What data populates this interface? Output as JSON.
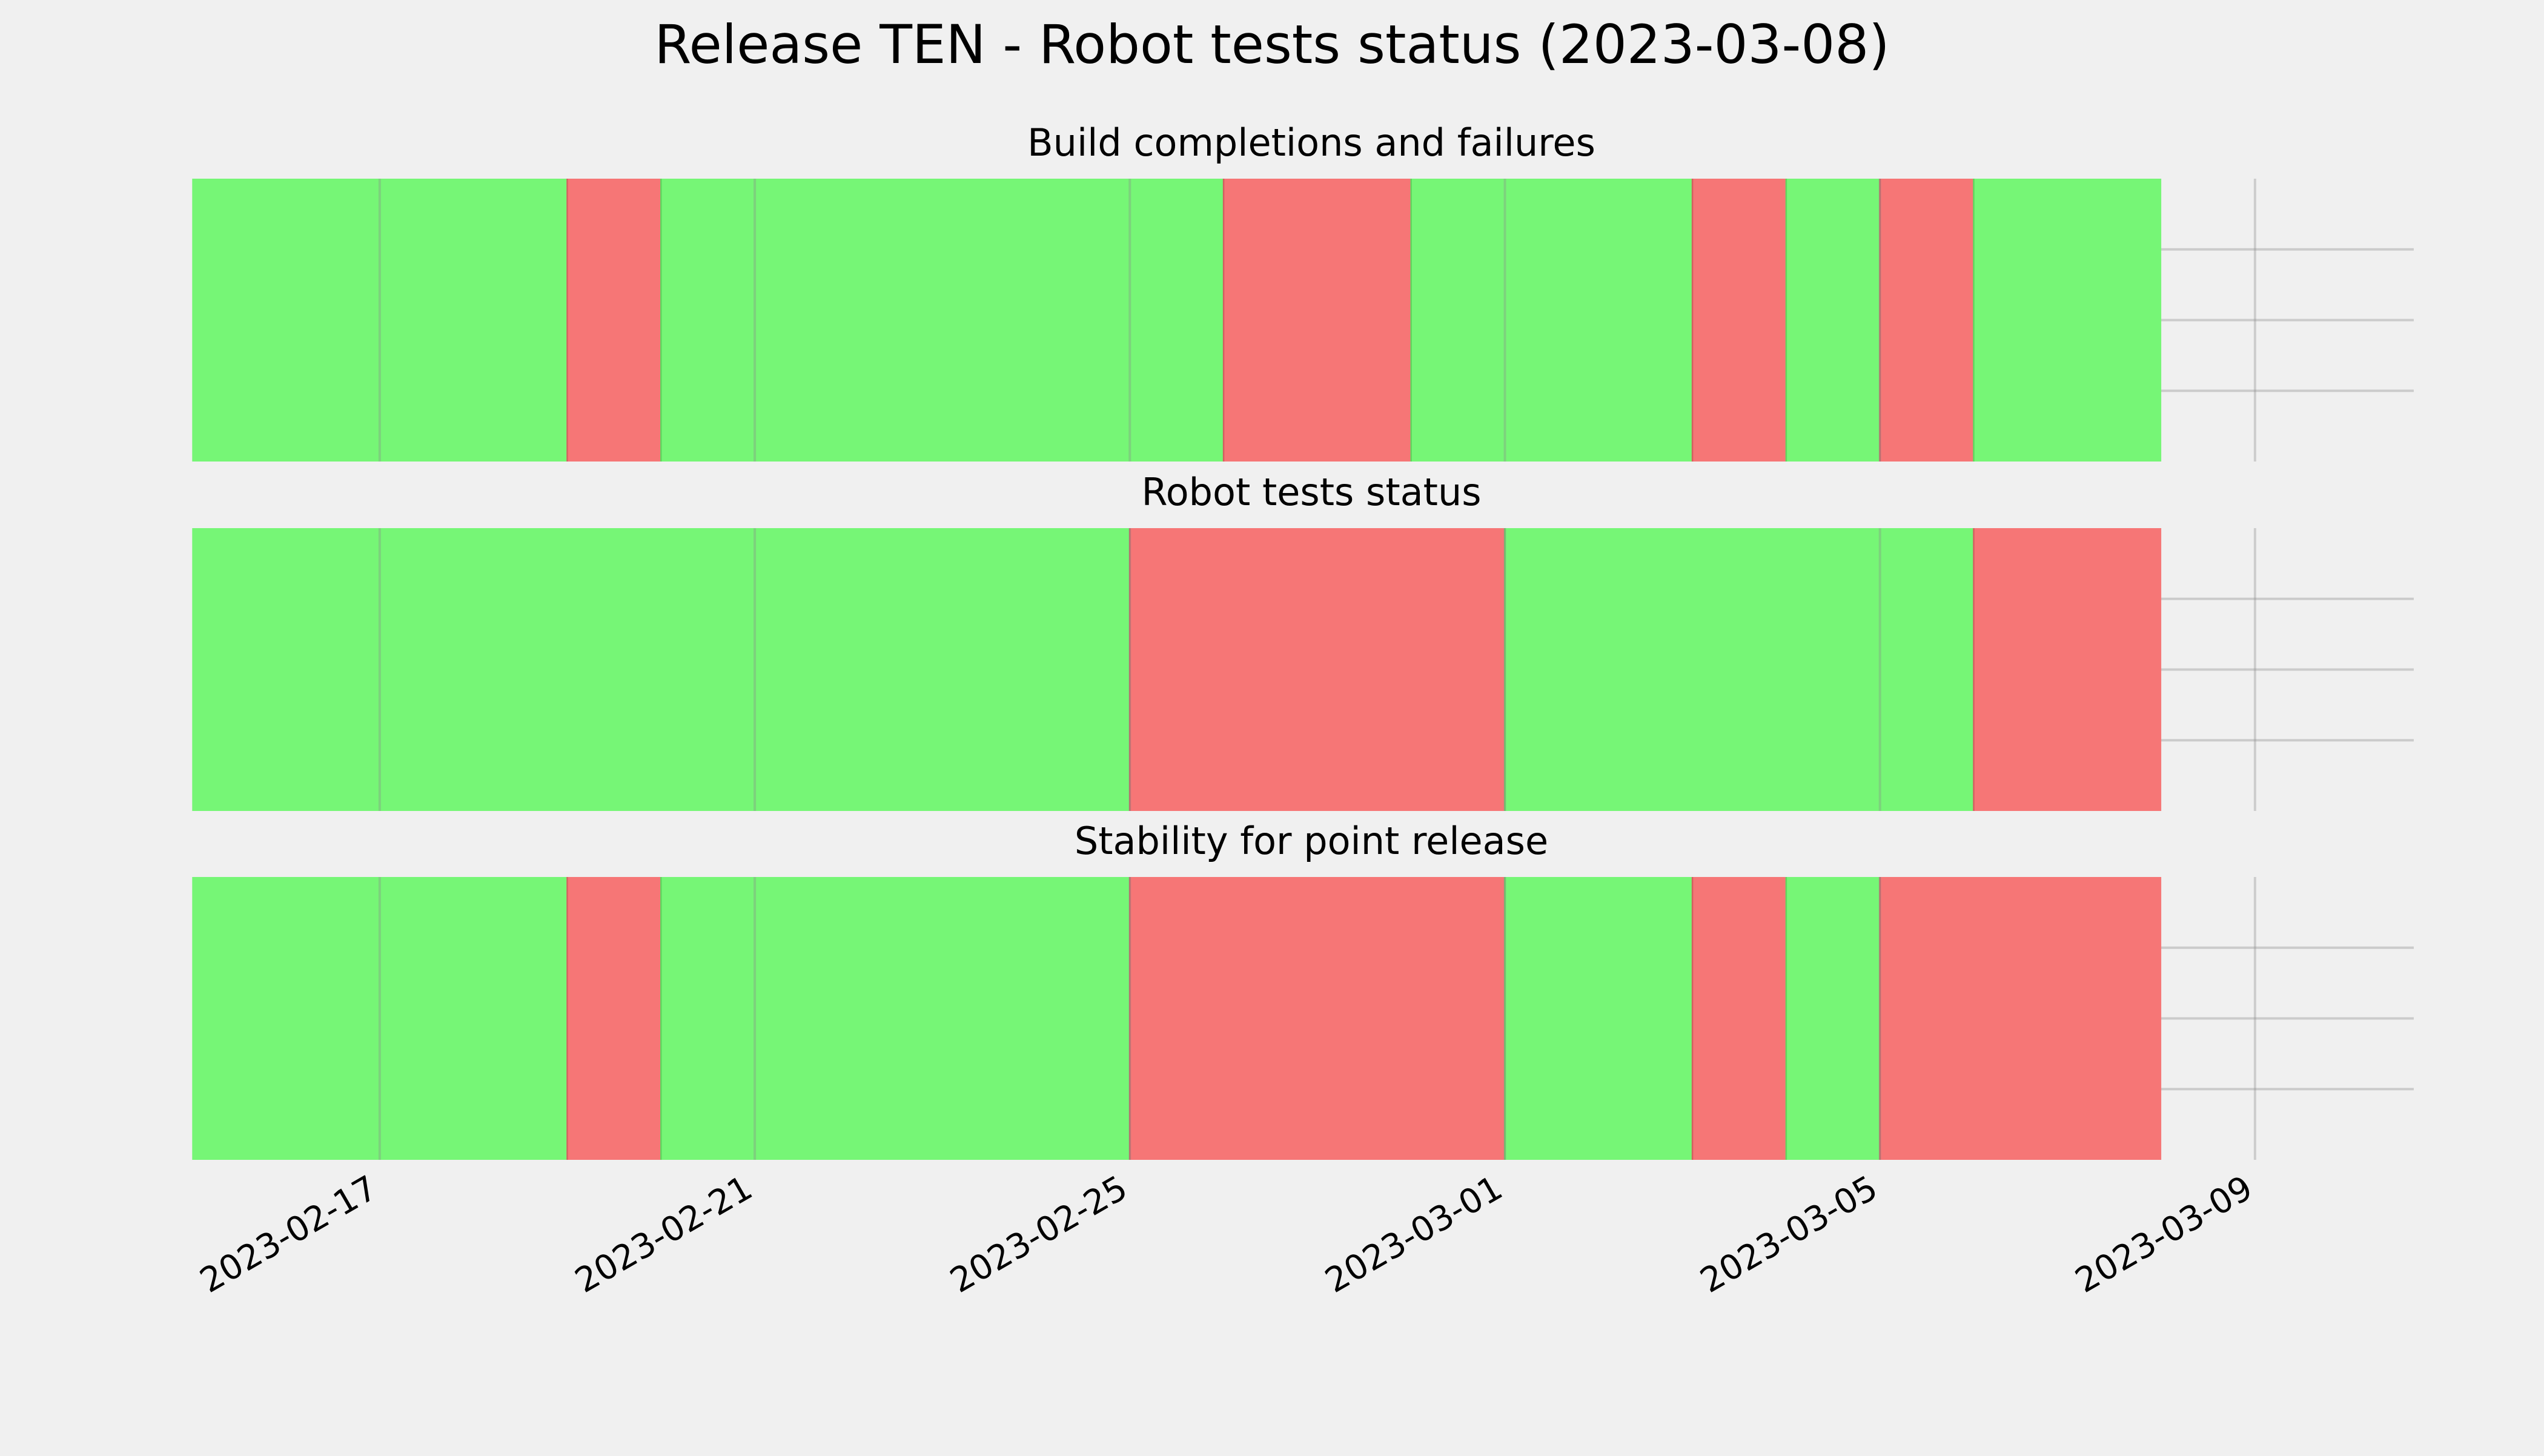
{
  "chart_data": {
    "type": "timeline-status",
    "title": "Release TEN - Robot tests status (2023-03-08)",
    "x_axis": {
      "type": "date",
      "range": [
        "2023-02-14",
        "2023-03-09"
      ],
      "tick_labels": [
        "2023-02-17",
        "2023-02-21",
        "2023-02-25",
        "2023-03-01",
        "2023-03-05",
        "2023-03-09"
      ],
      "tick_label_rotation_deg": 30
    },
    "grid": true,
    "colors": {
      "success": "#76f676",
      "failure": "#f67676",
      "background": "#f0f0f0",
      "grid": "#cbcbcb"
    },
    "panels": [
      {
        "title": "Build completions and failures",
        "segments": [
          {
            "start": "2023-02-15",
            "end": "2023-02-19",
            "status": "success"
          },
          {
            "start": "2023-02-19",
            "end": "2023-02-20",
            "status": "failure"
          },
          {
            "start": "2023-02-20",
            "end": "2023-02-26",
            "status": "success"
          },
          {
            "start": "2023-02-26",
            "end": "2023-02-28",
            "status": "failure"
          },
          {
            "start": "2023-02-28",
            "end": "2023-03-03",
            "status": "success"
          },
          {
            "start": "2023-03-03",
            "end": "2023-03-04",
            "status": "failure"
          },
          {
            "start": "2023-03-04",
            "end": "2023-03-05",
            "status": "success"
          },
          {
            "start": "2023-03-05",
            "end": "2023-03-06",
            "status": "failure"
          },
          {
            "start": "2023-03-06",
            "end": "2023-03-08",
            "status": "success"
          }
        ]
      },
      {
        "title": "Robot tests status",
        "segments": [
          {
            "start": "2023-02-15",
            "end": "2023-02-25",
            "status": "success"
          },
          {
            "start": "2023-02-25",
            "end": "2023-03-01",
            "status": "failure"
          },
          {
            "start": "2023-03-01",
            "end": "2023-03-06",
            "status": "success"
          },
          {
            "start": "2023-03-06",
            "end": "2023-03-08",
            "status": "failure"
          }
        ]
      },
      {
        "title": "Stability for point release",
        "segments": [
          {
            "start": "2023-02-15",
            "end": "2023-02-19",
            "status": "success"
          },
          {
            "start": "2023-02-19",
            "end": "2023-02-20",
            "status": "failure"
          },
          {
            "start": "2023-02-20",
            "end": "2023-02-25",
            "status": "success"
          },
          {
            "start": "2023-02-25",
            "end": "2023-03-01",
            "status": "failure"
          },
          {
            "start": "2023-03-01",
            "end": "2023-03-03",
            "status": "success"
          },
          {
            "start": "2023-03-03",
            "end": "2023-03-04",
            "status": "failure"
          },
          {
            "start": "2023-03-04",
            "end": "2023-03-05",
            "status": "success"
          },
          {
            "start": "2023-03-05",
            "end": "2023-03-08",
            "status": "failure"
          }
        ]
      }
    ]
  }
}
